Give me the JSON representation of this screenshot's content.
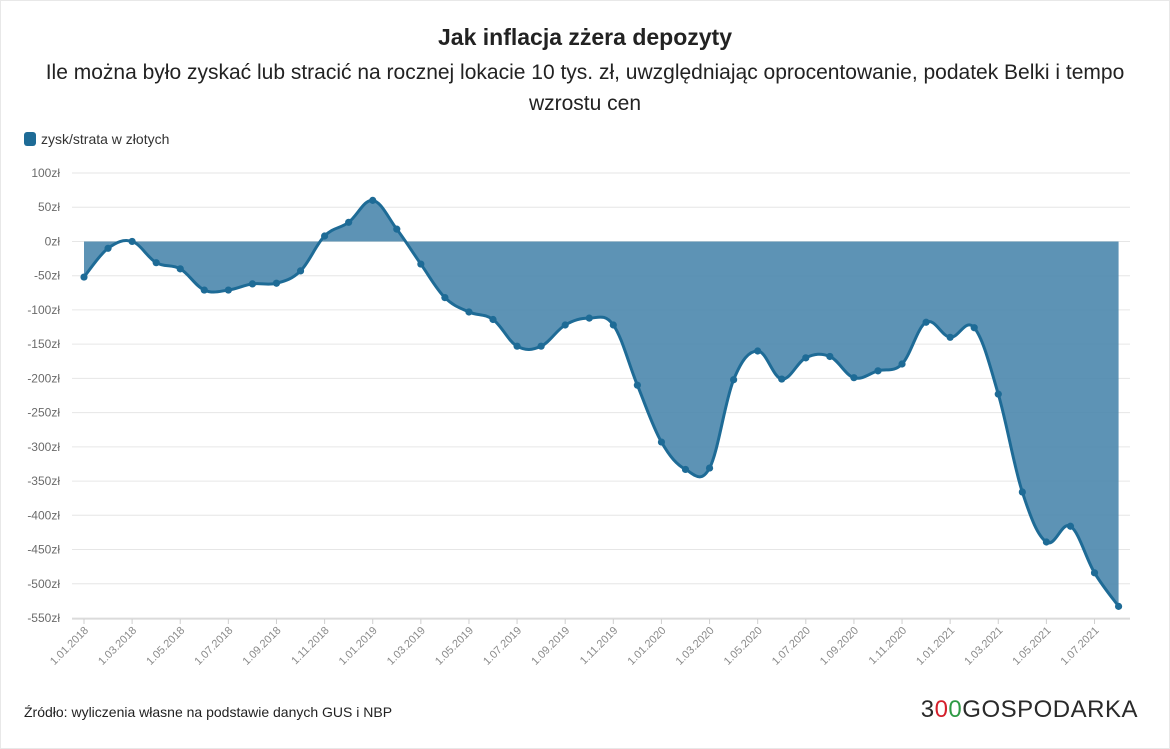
{
  "title": "Jak inflacja zżera depozyty",
  "subtitle": "Ile można było zyskać lub stracić na rocznej lokacie 10 tys. zł, uwzględniając oprocentowanie, podatek Belki i tempo wzrostu cen",
  "source": "Źródło: wyliczenia własne na podstawie danych GUS i NBP",
  "brand": {
    "digit": "3",
    "o_red": "0",
    "o_green": "0",
    "word": "GOSPODARKA"
  },
  "colors": {
    "area": "#4b87ad",
    "line": "#1e6b96",
    "grid": "#e6e6e6"
  },
  "chart_data": {
    "type": "area",
    "legend": "zysk/strata w złotych",
    "ylim": [
      -550,
      100
    ],
    "ytick_values": [
      100,
      50,
      0,
      -50,
      -100,
      -150,
      -200,
      -250,
      -300,
      -350,
      -400,
      -450,
      -500,
      -550
    ],
    "ytick_labels": [
      "100zł",
      "50zł",
      "0zł",
      "-50zł",
      "-100zł",
      "-150zł",
      "-200zł",
      "-250zł",
      "-300zł",
      "-350zł",
      "-400zł",
      "-450zł",
      "-500zł",
      "-550zł"
    ],
    "xtick_labels": [
      "1.01.2018",
      "1.03.2018",
      "1.05.2018",
      "1.07.2018",
      "1.09.2018",
      "1.11.2018",
      "1.01.2019",
      "1.03.2019",
      "1.05.2019",
      "1.07.2019",
      "1.09.2019",
      "1.11.2019",
      "1.01.2020",
      "1.03.2020",
      "1.05.2020",
      "1.07.2020",
      "1.09.2020",
      "1.11.2020",
      "1.01.2021",
      "1.03.2021",
      "1.05.2021",
      "1.07.2021"
    ],
    "series": [
      {
        "name": "zysk/strata w złotych",
        "values": [
          -52,
          -10,
          0,
          -31,
          -40,
          -71,
          -71,
          -62,
          -61,
          -43,
          8,
          28,
          60,
          18,
          -33,
          -82,
          -103,
          -114,
          -153,
          -153,
          -122,
          -112,
          -122,
          -210,
          -293,
          -333,
          -331,
          -202,
          -160,
          -201,
          -170,
          -168,
          -199,
          -189,
          -179,
          -118,
          -140,
          -126,
          -223,
          -366,
          -439,
          -416,
          -484,
          -533
        ]
      }
    ]
  }
}
